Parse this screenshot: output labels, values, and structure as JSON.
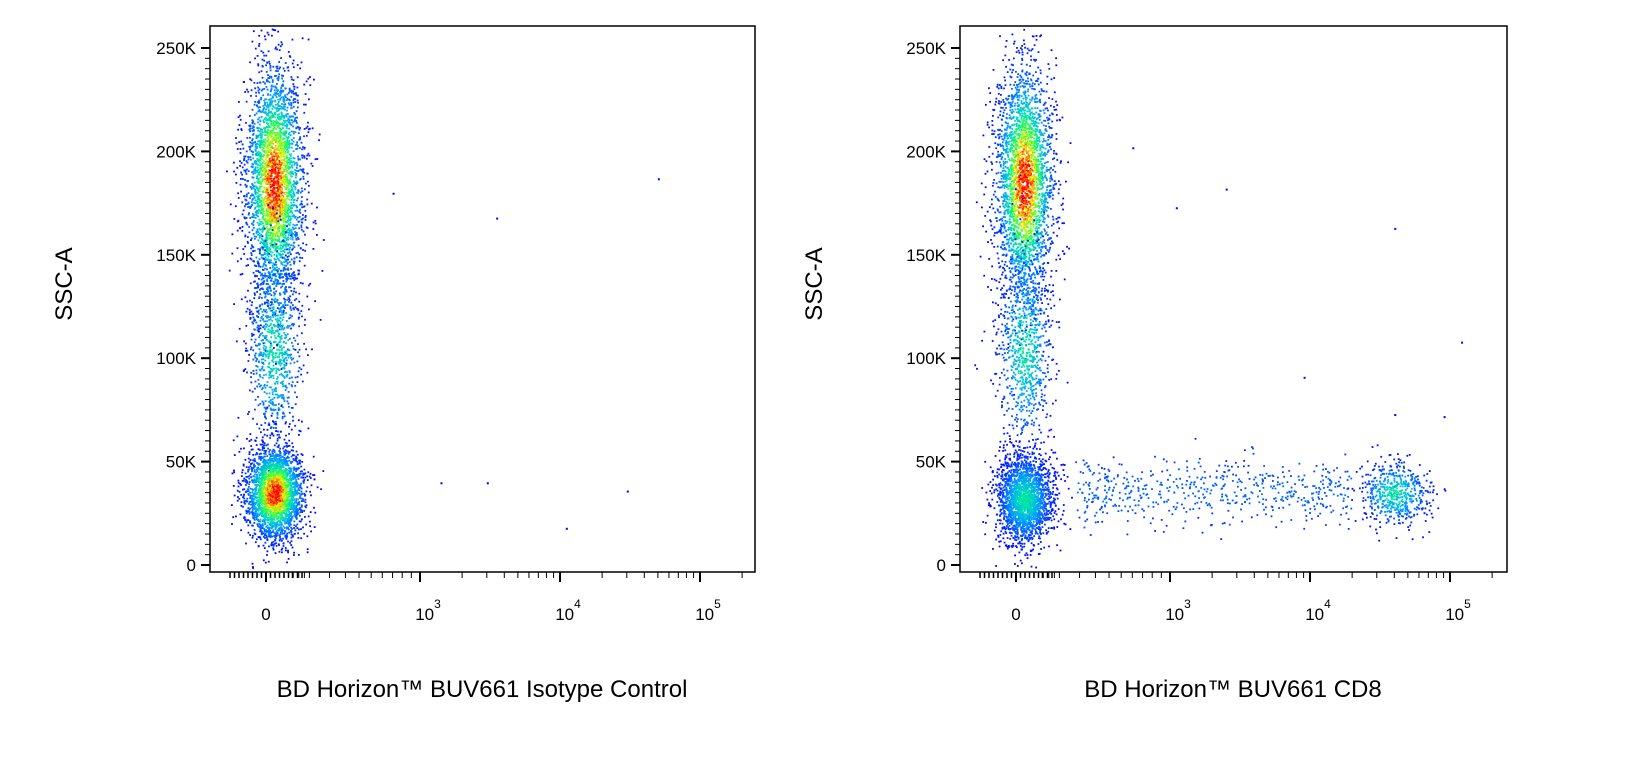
{
  "chart_data": [
    {
      "type": "scatter",
      "title": "",
      "xlabel": "BD Horizon™ BUV661 Isotype Control",
      "ylabel": "SSC-A",
      "x_scale": "biexponential",
      "x_ticks": [
        {
          "value": "0",
          "base": "0",
          "exp": ""
        },
        {
          "value": 1000,
          "base": "10",
          "exp": "3"
        },
        {
          "value": 10000,
          "base": "10",
          "exp": "4"
        },
        {
          "value": 100000,
          "base": "10",
          "exp": "5"
        }
      ],
      "y_ticks": [
        {
          "value": 0,
          "label": "0"
        },
        {
          "value": 50000,
          "label": "50K"
        },
        {
          "value": 100000,
          "label": "100K"
        },
        {
          "value": 150000,
          "label": "150K"
        },
        {
          "value": 200000,
          "label": "200K"
        },
        {
          "value": 250000,
          "label": "250K"
        }
      ],
      "ylim": [
        -5000,
        262000
      ],
      "grid": false,
      "density_colormap": [
        "#0000ff",
        "#00ccff",
        "#00ff66",
        "#ffff00",
        "#ff0000"
      ],
      "populations": [
        {
          "description": "SSC-high cluster, marker negative",
          "x_center": 0,
          "y_center": 185000,
          "y_spread": 28000,
          "relative_density": 0.45
        },
        {
          "description": "SSC-mid tail, marker negative",
          "x_center": 0,
          "y_center": 105000,
          "y_spread": 25000,
          "relative_density": 0.12
        },
        {
          "description": "SSC-low cluster, marker negative",
          "x_center": 0,
          "y_center": 35000,
          "y_spread": 11000,
          "relative_density": 0.38
        }
      ],
      "outliers": [
        {
          "x": 3500,
          "y": 168000
        },
        {
          "x": 50000,
          "y": 187000
        },
        {
          "x": 1400,
          "y": 40000
        },
        {
          "x": 3000,
          "y": 40000
        },
        {
          "x": 11000,
          "y": 18000
        },
        {
          "x": 30000,
          "y": 36000
        },
        {
          "x": 700,
          "y": 180000
        }
      ]
    },
    {
      "type": "scatter",
      "title": "",
      "xlabel": "BD Horizon™ BUV661 CD8",
      "ylabel": "SSC-A",
      "x_scale": "biexponential",
      "x_ticks": [
        {
          "value": "0",
          "base": "0",
          "exp": ""
        },
        {
          "value": 1000,
          "base": "10",
          "exp": "3"
        },
        {
          "value": 10000,
          "base": "10",
          "exp": "4"
        },
        {
          "value": 100000,
          "base": "10",
          "exp": "5"
        }
      ],
      "y_ticks": [
        {
          "value": 0,
          "label": "0"
        },
        {
          "value": 50000,
          "label": "50K"
        },
        {
          "value": 100000,
          "label": "100K"
        },
        {
          "value": 150000,
          "label": "150K"
        },
        {
          "value": 200000,
          "label": "200K"
        },
        {
          "value": 250000,
          "label": "250K"
        }
      ],
      "ylim": [
        -5000,
        262000
      ],
      "grid": false,
      "density_colormap": [
        "#0000ff",
        "#00ccff",
        "#00ff66",
        "#ffff00",
        "#ff0000"
      ],
      "populations": [
        {
          "description": "SSC-high cluster, CD8 negative",
          "x_center": 0,
          "y_center": 185000,
          "y_spread": 28000,
          "relative_density": 0.42
        },
        {
          "description": "SSC-mid tail, CD8 negative",
          "x_center": 0,
          "y_center": 105000,
          "y_spread": 25000,
          "relative_density": 0.12
        },
        {
          "description": "SSC-low cluster, CD8 negative",
          "x_center": 0,
          "y_center": 32000,
          "y_spread": 11000,
          "relative_density": 0.3
        },
        {
          "description": "CD8 dim smear",
          "x_range": [
            200,
            20000
          ],
          "y_center": 36000,
          "y_spread": 8000,
          "relative_density": 0.08
        },
        {
          "description": "CD8 positive cluster",
          "x_center": 40000,
          "y_center": 35000,
          "y_spread": 8000,
          "relative_density": 0.08
        }
      ],
      "outliers": [
        {
          "x": 600,
          "y": 202000
        },
        {
          "x": 1100,
          "y": 173000
        },
        {
          "x": 2500,
          "y": 182000
        },
        {
          "x": 40000,
          "y": 163000
        },
        {
          "x": 120000,
          "y": 108000
        },
        {
          "x": 9000,
          "y": 91000
        },
        {
          "x": 90000,
          "y": 72000
        },
        {
          "x": 40000,
          "y": 73000
        }
      ]
    }
  ]
}
